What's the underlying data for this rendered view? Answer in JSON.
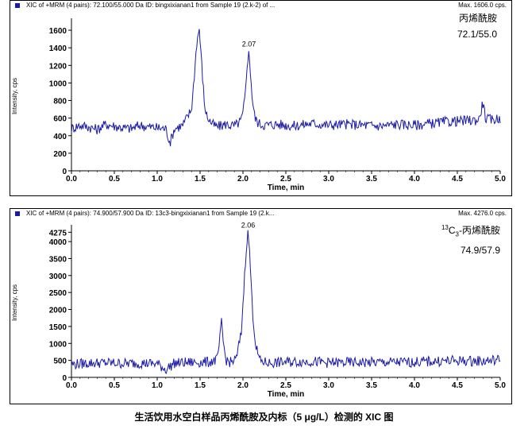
{
  "chart_data": [
    {
      "type": "line",
      "header": "XIC of +MRM (4 pairs): 72.100/55.000 Da ID: bingxixianan1 from Sample 19 (2.k-2) of ...",
      "max_label": "Max. 1606.0 cps.",
      "xlabel": "Time, min",
      "ylabel": "Intensity, cps",
      "xlim": [
        0,
        5.0
      ],
      "ylim": [
        0,
        1700
      ],
      "xticks": [
        "0.0",
        "0.5",
        "1.0",
        "1.5",
        "2.0",
        "2.5",
        "3.0",
        "3.5",
        "4.0",
        "4.5",
        "5.0"
      ],
      "yticks": [
        "0",
        "200",
        "400",
        "600",
        "800",
        "1000",
        "1200",
        "1400",
        "1600"
      ],
      "compound_name": "丙烯酰胺",
      "transition": "72.1/55.0",
      "peak_label": "2.07",
      "peak_label_time": 2.07,
      "peak_label_value": 1360,
      "series": [
        {
          "color": "#1a1aa6",
          "x": [
            0.0,
            0.1,
            0.2,
            0.3,
            0.4,
            0.5,
            0.6,
            0.7,
            0.8,
            0.9,
            1.0,
            1.1,
            1.15,
            1.2,
            1.3,
            1.4,
            1.43,
            1.46,
            1.49,
            1.52,
            1.55,
            1.58,
            1.62,
            1.66,
            1.7,
            1.8,
            1.9,
            1.97,
            2.0,
            2.03,
            2.05,
            2.07,
            2.09,
            2.11,
            2.14,
            2.18,
            2.25,
            2.4,
            2.6,
            2.8,
            3.0,
            3.2,
            3.4,
            3.6,
            3.8,
            4.0,
            4.2,
            4.4,
            4.6,
            4.75,
            4.8,
            4.83,
            4.9,
            5.0
          ],
          "y": [
            480,
            520,
            500,
            470,
            530,
            510,
            490,
            480,
            520,
            500,
            490,
            480,
            320,
            480,
            520,
            700,
            1050,
            1450,
            1620,
            1200,
            760,
            620,
            560,
            520,
            500,
            530,
            510,
            560,
            650,
            900,
            1250,
            1340,
            1100,
            800,
            600,
            540,
            520,
            530,
            510,
            540,
            520,
            530,
            520,
            510,
            530,
            520,
            540,
            560,
            570,
            580,
            780,
            590,
            580,
            600
          ]
        }
      ]
    },
    {
      "type": "line",
      "header": "XIC of +MRM (4 pairs): 74.900/57.900 Da ID: 13c3-bingxixianan1 from Sample 19 (2.k...",
      "max_label": "Max. 4276.0 cps.",
      "xlabel": "Time, min",
      "ylabel": "Intensity, cps",
      "xlim": [
        0,
        5.0
      ],
      "ylim": [
        0,
        4400
      ],
      "xticks": [
        "0.0",
        "0.5",
        "1.0",
        "1.5",
        "2.0",
        "2.5",
        "3.0",
        "3.5",
        "4.0",
        "4.5",
        "5.0"
      ],
      "yticks": [
        "0",
        "500",
        "1000",
        "1500",
        "2000",
        "2500",
        "3000",
        "3500",
        "4000",
        "4275"
      ],
      "compound_name": "丙烯酰胺",
      "isotope_prefix": "13",
      "isotope_element": "C",
      "isotope_count": "3",
      "transition": "74.9/57.9",
      "peak_label": "2.06",
      "peak_label_time": 2.06,
      "peak_label_value": 4276,
      "series": [
        {
          "color": "#1a1aa6",
          "x": [
            0.0,
            0.2,
            0.4,
            0.6,
            0.8,
            1.0,
            1.1,
            1.2,
            1.4,
            1.6,
            1.7,
            1.73,
            1.75,
            1.77,
            1.8,
            1.85,
            1.92,
            1.98,
            2.01,
            2.04,
            2.06,
            2.08,
            2.11,
            2.15,
            2.2,
            2.3,
            2.5,
            2.8,
            3.0,
            3.5,
            4.0,
            4.2,
            4.5,
            4.8,
            5.0
          ],
          "y": [
            380,
            420,
            430,
            410,
            420,
            400,
            230,
            420,
            440,
            450,
            520,
            1100,
            1620,
            1050,
            520,
            440,
            520,
            1300,
            2600,
            3900,
            4276,
            3600,
            2000,
            900,
            480,
            420,
            450,
            470,
            430,
            440,
            450,
            470,
            490,
            480,
            520
          ]
        }
      ]
    }
  ],
  "caption": "生活饮用水空白样品丙烯酰胺及内标（5 μg/L）检测的 XIC 图"
}
